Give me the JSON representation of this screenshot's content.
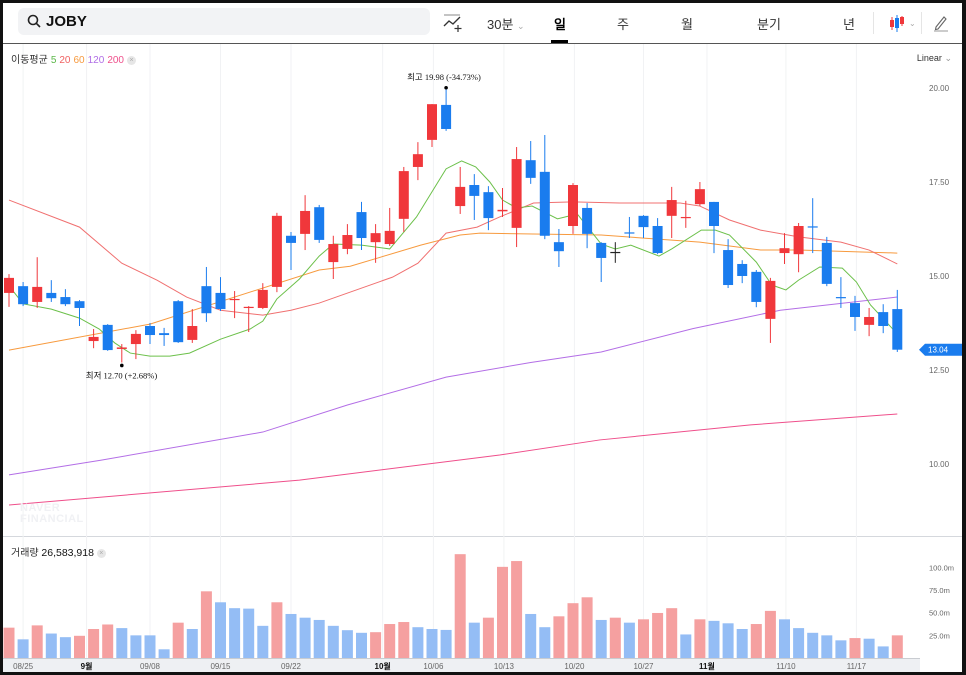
{
  "header": {
    "search_value": "JOBY",
    "interval_dropdown": "30분",
    "tabs": [
      "일",
      "주",
      "월",
      "분기",
      "년"
    ],
    "active_tab": "일",
    "icons": [
      "search-icon",
      "indicator-add-icon",
      "candle-type-icon",
      "pencil-icon"
    ]
  },
  "legend": {
    "label": "이동평균",
    "periods": [
      {
        "label": "5",
        "color": "#5cb84a"
      },
      {
        "label": "20",
        "color": "#f06262"
      },
      {
        "label": "60",
        "color": "#f79a3e"
      },
      {
        "label": "120",
        "color": "#b06ee6"
      },
      {
        "label": "200",
        "color": "#ef4f8b"
      }
    ]
  },
  "scale_mode": "Linear",
  "watermark": "NAVER FINANCIAL",
  "volume_panel": {
    "label": "거래량",
    "value": "26,583,918"
  },
  "colors": {
    "up": "#f0373b",
    "down": "#1a7cee",
    "vol_up": "#f5a0a0",
    "vol_down": "#94bdf5"
  },
  "chart_data": {
    "type": "candlestick",
    "ylim": [
      8.5,
      21.2
    ],
    "yticks": [
      "20.00",
      "17.50",
      "15.00",
      "12.50",
      "10.00"
    ],
    "ytick_values": [
      20,
      17.5,
      15,
      12.5,
      10
    ],
    "last_price": "13.04",
    "last_price_value": 13.04,
    "high_annotation": {
      "label": "최고",
      "text": "19.98 (-34.73%)",
      "index": 31,
      "value": 19.98
    },
    "low_annotation": {
      "label": "최저",
      "text": "12.70 (+2.68%)",
      "index": 8,
      "value": 12.7
    },
    "xticks": [
      {
        "label": "08/25",
        "index": 1,
        "bold": false
      },
      {
        "label": "9월",
        "index": 5.5,
        "bold": true
      },
      {
        "label": "09/08",
        "index": 10,
        "bold": false
      },
      {
        "label": "09/15",
        "index": 15,
        "bold": false
      },
      {
        "label": "09/22",
        "index": 20,
        "bold": false
      },
      {
        "label": "10월",
        "index": 26.5,
        "bold": true
      },
      {
        "label": "10/06",
        "index": 30.1,
        "bold": false
      },
      {
        "label": "10/13",
        "index": 35.1,
        "bold": false
      },
      {
        "label": "10/20",
        "index": 40.1,
        "bold": false
      },
      {
        "label": "10/27",
        "index": 45,
        "bold": false
      },
      {
        "label": "11월",
        "index": 49.5,
        "bold": true
      },
      {
        "label": "11/10",
        "index": 55.1,
        "bold": false
      },
      {
        "label": "11/17",
        "index": 60.1,
        "bold": false
      }
    ],
    "ohlc": [
      [
        14.55,
        14.95,
        15.05,
        14.18
      ],
      [
        14.73,
        14.25,
        14.84,
        14.2
      ],
      [
        14.31,
        14.71,
        15.5,
        14.15
      ],
      [
        14.55,
        14.41,
        14.89,
        14.31
      ],
      [
        14.44,
        14.25,
        14.65,
        14.2
      ],
      [
        14.33,
        14.15,
        14.36,
        13.67
      ],
      [
        13.27,
        13.38,
        13.59,
        13.08
      ],
      [
        13.7,
        13.03,
        13.72,
        13.01
      ],
      [
        13.06,
        13.1,
        13.19,
        12.7
      ],
      [
        13.19,
        13.46,
        13.56,
        12.79
      ],
      [
        13.67,
        13.43,
        13.75,
        13.19
      ],
      [
        13.48,
        13.43,
        13.62,
        13.14
      ],
      [
        14.33,
        13.24,
        14.36,
        13.22
      ],
      [
        13.3,
        13.67,
        14.12,
        13.22
      ],
      [
        14.73,
        14.01,
        15.24,
        13.78
      ],
      [
        14.55,
        14.12,
        14.97,
        14.07
      ],
      [
        14.36,
        14.39,
        14.6,
        13.88
      ],
      [
        14.15,
        14.18,
        14.2,
        13.51
      ],
      [
        14.15,
        14.63,
        14.81,
        14.12
      ],
      [
        14.71,
        16.6,
        16.68,
        14.57
      ],
      [
        16.07,
        15.88,
        16.17,
        15.16
      ],
      [
        16.12,
        16.73,
        17.15,
        15.69
      ],
      [
        16.83,
        15.96,
        16.89,
        15.88
      ],
      [
        15.37,
        15.85,
        16.07,
        14.92
      ],
      [
        15.72,
        16.09,
        16.38,
        15.58
      ],
      [
        16.7,
        16.01,
        16.97,
        15.69
      ],
      [
        15.9,
        16.14,
        16.38,
        15.35
      ],
      [
        15.85,
        16.2,
        16.81,
        15.8
      ],
      [
        16.52,
        17.79,
        17.9,
        16.17
      ],
      [
        17.9,
        18.24,
        18.56,
        17.55
      ],
      [
        18.62,
        19.57,
        19.57,
        18.43
      ],
      [
        19.55,
        18.91,
        19.98,
        18.86
      ],
      [
        16.86,
        17.37,
        17.9,
        16.65
      ],
      [
        17.42,
        17.13,
        17.71,
        16.49
      ],
      [
        17.23,
        16.54,
        17.39,
        16.22
      ],
      [
        16.72,
        16.76,
        17.34,
        16.57
      ],
      [
        16.28,
        18.11,
        18.43,
        15.77
      ],
      [
        18.08,
        17.61,
        18.59,
        17.45
      ],
      [
        17.77,
        16.07,
        18.75,
        15.98
      ],
      [
        15.9,
        15.66,
        16.25,
        15.24
      ],
      [
        16.33,
        17.42,
        17.47,
        16.12
      ],
      [
        16.81,
        16.12,
        16.94,
        15.74
      ],
      [
        15.88,
        15.48,
        15.9,
        14.84
      ],
      [
        15.64,
        15.62,
        15.9,
        15.35
      ],
      [
        16.16,
        16.13,
        16.57,
        16.01
      ],
      [
        16.6,
        16.3,
        16.62,
        16.01
      ],
      [
        16.33,
        15.61,
        16.54,
        15.58
      ],
      [
        16.6,
        17.02,
        17.37,
        16.01
      ],
      [
        16.54,
        16.57,
        17.0,
        16.28
      ],
      [
        16.91,
        17.31,
        17.5,
        16.86
      ],
      [
        16.97,
        16.33,
        16.97,
        15.61
      ],
      [
        15.69,
        14.76,
        15.98,
        14.68
      ],
      [
        15.32,
        15.0,
        15.42,
        14.81
      ],
      [
        15.11,
        14.31,
        15.16,
        14.17
      ],
      [
        13.86,
        14.87,
        14.95,
        13.22
      ],
      [
        15.61,
        15.74,
        16.14,
        15.32
      ],
      [
        15.58,
        16.33,
        16.41,
        15.1
      ],
      [
        16.32,
        16.3,
        17.07,
        15.61
      ],
      [
        15.88,
        14.79,
        16.04,
        14.73
      ],
      [
        14.44,
        14.41,
        14.97,
        14.15
      ],
      [
        14.28,
        13.91,
        14.47,
        13.54
      ],
      [
        13.7,
        13.91,
        14.15,
        13.4
      ],
      [
        14.04,
        13.67,
        14.25,
        13.48
      ],
      [
        14.12,
        13.04,
        14.63,
        12.98
      ]
    ],
    "moving_averages": [
      {
        "name": "MA5",
        "color": "#6cc04a",
        "points": [
          [
            0,
            14.74
          ],
          [
            1,
            14.26
          ],
          [
            3,
            14.12
          ],
          [
            5,
            13.88
          ],
          [
            6.4,
            13.59
          ],
          [
            7.5,
            13.22
          ],
          [
            8.6,
            12.95
          ],
          [
            10,
            12.87
          ],
          [
            11.4,
            12.87
          ],
          [
            12.8,
            12.95
          ],
          [
            15,
            13.32
          ],
          [
            17.1,
            13.59
          ],
          [
            18,
            13.8
          ],
          [
            19,
            14.39
          ],
          [
            20.6,
            14.92
          ],
          [
            22,
            15.53
          ],
          [
            23,
            15.85
          ],
          [
            25,
            15.82
          ],
          [
            27,
            15.72
          ],
          [
            28.9,
            16.57
          ],
          [
            31,
            17.85
          ],
          [
            32.1,
            18.06
          ],
          [
            33.1,
            17.9
          ],
          [
            34.1,
            17.5
          ],
          [
            35,
            17.02
          ],
          [
            36,
            16.81
          ],
          [
            37.1,
            16.86
          ],
          [
            38.9,
            16.52
          ],
          [
            40.3,
            16.65
          ],
          [
            42,
            15.85
          ],
          [
            43,
            15.72
          ],
          [
            44.1,
            15.82
          ],
          [
            46.1,
            15.53
          ],
          [
            47,
            15.72
          ],
          [
            49.1,
            16.22
          ],
          [
            50.1,
            16.22
          ],
          [
            51.1,
            16.09
          ],
          [
            53,
            15.37
          ],
          [
            54.1,
            14.76
          ],
          [
            55.1,
            14.63
          ],
          [
            56,
            14.89
          ],
          [
            57.5,
            15.24
          ],
          [
            59.1,
            15.21
          ],
          [
            60.1,
            14.84
          ],
          [
            61.1,
            14.23
          ],
          [
            63,
            13.46
          ]
        ]
      },
      {
        "name": "MA20",
        "color": "#f07070",
        "points": [
          [
            0,
            17.02
          ],
          [
            5,
            16.3
          ],
          [
            8,
            15.34
          ],
          [
            10.5,
            14.89
          ],
          [
            12.6,
            14.44
          ],
          [
            15,
            14.09
          ],
          [
            18,
            13.96
          ],
          [
            20,
            14.09
          ],
          [
            22,
            14.28
          ],
          [
            27.2,
            14.97
          ],
          [
            29,
            15.34
          ],
          [
            31,
            16.14
          ],
          [
            33.2,
            16.3
          ],
          [
            34.8,
            16.57
          ],
          [
            37.2,
            16.94
          ],
          [
            40,
            16.97
          ],
          [
            43.3,
            16.94
          ],
          [
            47.6,
            16.94
          ],
          [
            49,
            16.86
          ],
          [
            51.1,
            16.49
          ],
          [
            53.3,
            16.22
          ],
          [
            56,
            16.04
          ],
          [
            59,
            15.9
          ],
          [
            61,
            15.69
          ],
          [
            63,
            15.32
          ]
        ]
      },
      {
        "name": "MA60",
        "color": "#f79a3e",
        "points": [
          [
            0,
            13.03
          ],
          [
            10,
            13.72
          ],
          [
            22,
            15.16
          ],
          [
            24.2,
            15.26
          ],
          [
            29.2,
            15.82
          ],
          [
            32,
            16.09
          ],
          [
            33.4,
            16.14
          ],
          [
            42,
            16.09
          ],
          [
            49,
            15.9
          ],
          [
            53.3,
            15.69
          ],
          [
            56,
            15.69
          ],
          [
            63,
            15.61
          ]
        ]
      },
      {
        "name": "MA120",
        "color": "#b36ee6",
        "points": [
          [
            0,
            9.71
          ],
          [
            6.5,
            10.1
          ],
          [
            18,
            10.85
          ],
          [
            24,
            11.57
          ],
          [
            31,
            12.31
          ],
          [
            37,
            12.7
          ],
          [
            42,
            12.98
          ],
          [
            48.5,
            13.6
          ],
          [
            54.7,
            14.09
          ],
          [
            63,
            14.44
          ]
        ]
      },
      {
        "name": "MA200",
        "color": "#ef4f8b",
        "points": [
          [
            0,
            8.91
          ],
          [
            20.6,
            9.57
          ],
          [
            34.8,
            10.24
          ],
          [
            41.9,
            10.64
          ],
          [
            52.6,
            11.04
          ],
          [
            63,
            11.33
          ]
        ]
      }
    ],
    "volume": {
      "unit": "m",
      "yticks": [
        "100.0m",
        "75.0m",
        "50.0m",
        "25.0m"
      ],
      "ytick_values": [
        100,
        75,
        50,
        25
      ],
      "values": [
        33.5,
        20.6,
        36,
        27,
        23,
        24.5,
        32,
        37,
        33,
        25,
        25,
        9.6,
        39,
        32,
        73.6,
        61.5,
        55,
        54.5,
        35.5,
        61.5,
        48.6,
        44.5,
        42,
        35.5,
        30.7,
        27.8,
        28.5,
        37.5,
        39.7,
        34,
        32,
        31,
        114.6,
        39,
        44.5,
        100.6,
        107,
        48.6,
        34,
        46,
        60.5,
        67,
        42,
        44.5,
        39,
        42.7,
        49.7,
        55,
        26,
        42.7,
        41,
        38.3,
        32,
        37.5,
        52,
        42.7,
        33,
        27.8,
        25,
        19.5,
        22,
        21.3,
        12.8,
        25
      ],
      "up": [
        1,
        0,
        1,
        0,
        0,
        1,
        1,
        1,
        0,
        0,
        0,
        0,
        1,
        0,
        1,
        0,
        0,
        0,
        0,
        1,
        0,
        0,
        0,
        0,
        0,
        0,
        1,
        1,
        1,
        0,
        0,
        0,
        1,
        0,
        1,
        1,
        1,
        0,
        0,
        1,
        1,
        1,
        0,
        1,
        0,
        1,
        1,
        1,
        0,
        1,
        0,
        0,
        0,
        1,
        1,
        0,
        0,
        0,
        0,
        0,
        1,
        0,
        0,
        1
      ]
    }
  }
}
